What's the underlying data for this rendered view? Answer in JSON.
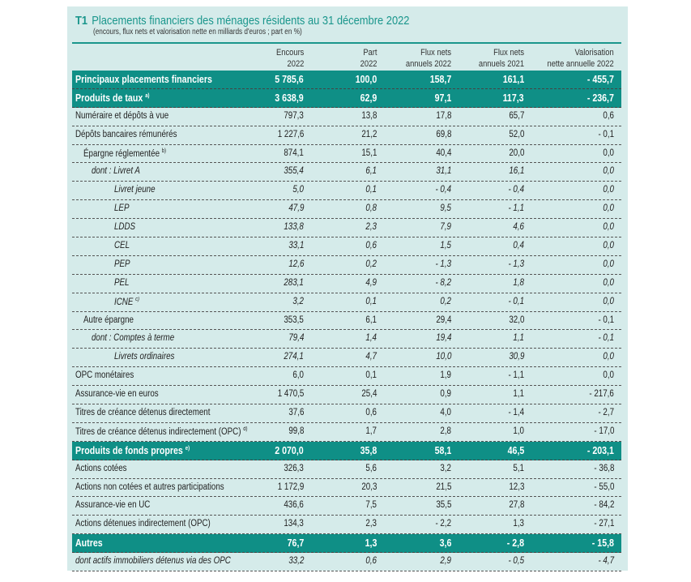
{
  "title": {
    "code": "T1",
    "text": "Placements financiers des ménages résidents au 31 décembre 2022"
  },
  "subtitle": "(encours, flux nets et valorisation nette en milliards d'euros ; part en %)",
  "columns": [
    [
      "Encours",
      "2022"
    ],
    [
      "Part",
      "2022"
    ],
    [
      "Flux nets",
      "annuels 2022"
    ],
    [
      "Flux nets",
      "annuels 2021"
    ],
    [
      "Valorisation",
      "nette annuelle 2022"
    ]
  ],
  "rows": [
    {
      "label": "Principaux placements financiers",
      "note": "",
      "type": "sec",
      "indent": 0,
      "values": [
        "5 785,6",
        "100,0",
        "158,7",
        "161,1",
        "- 455,7"
      ]
    },
    {
      "label": "Produits de taux",
      "note": "a)",
      "type": "sec",
      "indent": 0,
      "values": [
        "3 638,9",
        "62,9",
        "97,1",
        "117,3",
        "- 236,7"
      ]
    },
    {
      "label": "Numéraire et dépôts à vue",
      "note": "",
      "type": "",
      "indent": 0,
      "values": [
        "797,3",
        "13,8",
        "17,8",
        "65,7",
        "0,6"
      ]
    },
    {
      "label": "Dépôts bancaires rémunérés",
      "note": "",
      "type": "",
      "indent": 0,
      "values": [
        "1 227,6",
        "21,2",
        "69,8",
        "52,0",
        "- 0,1"
      ]
    },
    {
      "label": "Épargne réglementée",
      "note": "b)",
      "type": "",
      "indent": 1,
      "values": [
        "874,1",
        "15,1",
        "40,4",
        "20,0",
        "0,0"
      ]
    },
    {
      "label": "dont : Livret A",
      "note": "",
      "type": "it",
      "indent": 2,
      "values": [
        "355,4",
        "6,1",
        "31,1",
        "16,1",
        "0,0"
      ]
    },
    {
      "label": "Livret jeune",
      "note": "",
      "type": "it",
      "indent": 3,
      "values": [
        "5,0",
        "0,1",
        "- 0,4",
        "- 0,4",
        "0,0"
      ]
    },
    {
      "label": "LEP",
      "note": "",
      "type": "it",
      "indent": 3,
      "values": [
        "47,9",
        "0,8",
        "9,5",
        "- 1,1",
        "0,0"
      ]
    },
    {
      "label": "LDDS",
      "note": "",
      "type": "it",
      "indent": 3,
      "values": [
        "133,8",
        "2,3",
        "7,9",
        "4,6",
        "0,0"
      ]
    },
    {
      "label": "CEL",
      "note": "",
      "type": "it",
      "indent": 3,
      "values": [
        "33,1",
        "0,6",
        "1,5",
        "0,4",
        "0,0"
      ]
    },
    {
      "label": "PEP",
      "note": "",
      "type": "it",
      "indent": 3,
      "values": [
        "12,6",
        "0,2",
        "- 1,3",
        "- 1,3",
        "0,0"
      ]
    },
    {
      "label": "PEL",
      "note": "",
      "type": "it",
      "indent": 3,
      "values": [
        "283,1",
        "4,9",
        "- 8,2",
        "1,8",
        "0,0"
      ]
    },
    {
      "label": "ICNE",
      "note": "c)",
      "type": "it",
      "indent": 3,
      "values": [
        "3,2",
        "0,1",
        "0,2",
        "- 0,1",
        "0,0"
      ]
    },
    {
      "label": "Autre épargne",
      "note": "",
      "type": "",
      "indent": 1,
      "values": [
        "353,5",
        "6,1",
        "29,4",
        "32,0",
        "- 0,1"
      ]
    },
    {
      "label": "dont : Comptes à terme",
      "note": "",
      "type": "it",
      "indent": 2,
      "values": [
        "79,4",
        "1,4",
        "19,4",
        "1,1",
        "- 0,1"
      ]
    },
    {
      "label": "Livrets ordinaires",
      "note": "",
      "type": "it",
      "indent": 3,
      "values": [
        "274,1",
        "4,7",
        "10,0",
        "30,9",
        "0,0"
      ]
    },
    {
      "label": "OPC monétaires",
      "note": "",
      "type": "",
      "indent": 0,
      "values": [
        "6,0",
        "0,1",
        "1,9",
        "- 1,1",
        "0,0"
      ]
    },
    {
      "label": "Assurance-vie en euros",
      "note": "",
      "type": "",
      "indent": 0,
      "values": [
        "1 470,5",
        "25,4",
        "0,9",
        "1,1",
        "- 217,6"
      ]
    },
    {
      "label": "Titres de créance détenus directement",
      "note": "",
      "type": "",
      "indent": 0,
      "values": [
        "37,6",
        "0,6",
        "4,0",
        "- 1,4",
        "- 2,7"
      ]
    },
    {
      "label": "Titres de créance détenus indirectement (OPC)",
      "note": "d)",
      "type": "",
      "indent": 0,
      "values": [
        "99,8",
        "1,7",
        "2,8",
        "1,0",
        "- 17,0"
      ]
    },
    {
      "label": "Produits de fonds propres",
      "note": "e)",
      "type": "sec",
      "indent": 0,
      "values": [
        "2 070,0",
        "35,8",
        "58,1",
        "46,5",
        "- 203,1"
      ]
    },
    {
      "label": "Actions cotées",
      "note": "",
      "type": "",
      "indent": 0,
      "values": [
        "326,3",
        "5,6",
        "3,2",
        "5,1",
        "- 36,8"
      ]
    },
    {
      "label": "Actions non cotées et autres participations",
      "note": "",
      "type": "",
      "indent": 0,
      "values": [
        "1 172,9",
        "20,3",
        "21,5",
        "12,3",
        "- 55,0"
      ]
    },
    {
      "label": "Assurance-vie en UC",
      "note": "",
      "type": "",
      "indent": 0,
      "values": [
        "436,6",
        "7,5",
        "35,5",
        "27,8",
        "- 84,2"
      ]
    },
    {
      "label": "Actions détenues indirectement (OPC)",
      "note": "",
      "type": "",
      "indent": 0,
      "values": [
        "134,3",
        "2,3",
        "- 2,2",
        "1,3",
        "- 27,1"
      ]
    },
    {
      "label": "Autres",
      "note": "",
      "type": "sec",
      "indent": 0,
      "values": [
        "76,7",
        "1,3",
        "3,6",
        "- 2,8",
        "- 15,8"
      ]
    },
    {
      "label": "dont actifs immobiliers détenus via des OPC",
      "note": "",
      "type": "it",
      "indent": 0,
      "values": [
        "33,2",
        "0,6",
        "2,9",
        "- 0,5",
        "- 4,7"
      ]
    }
  ]
}
